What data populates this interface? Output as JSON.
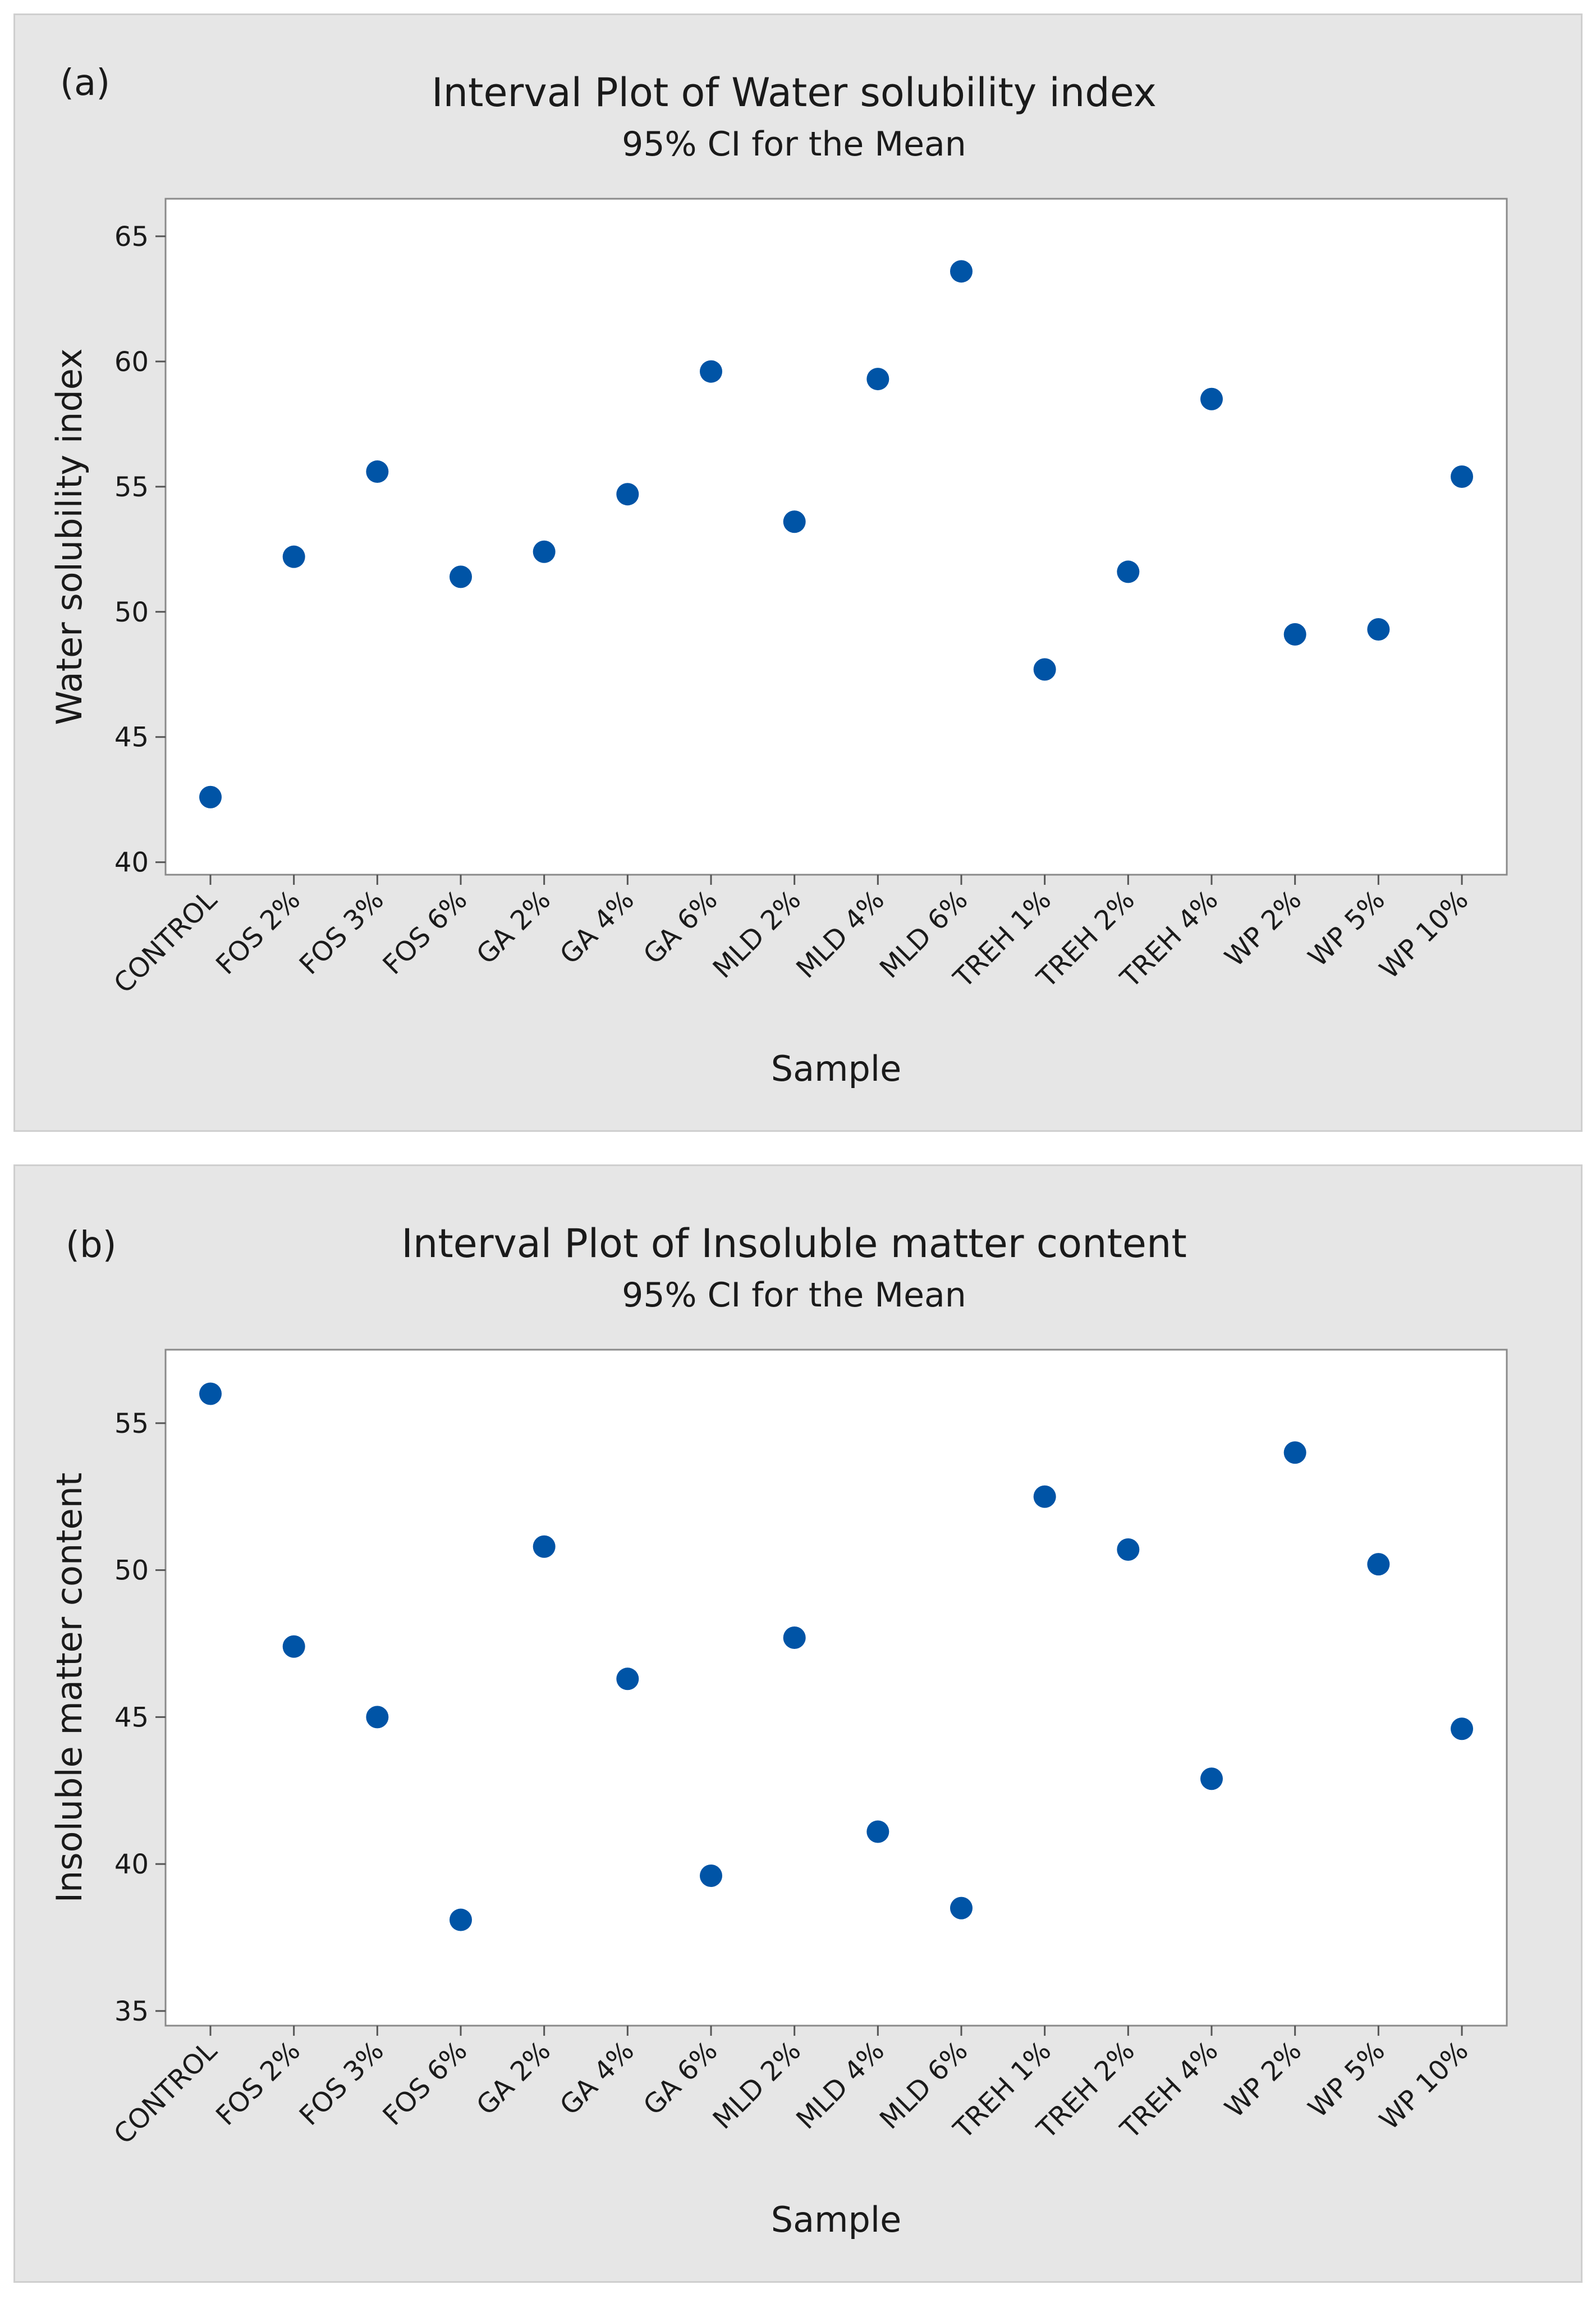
{
  "chart_data": [
    {
      "type": "scatter",
      "panel_label": "(a)",
      "title": "Interval Plot of Water solubility index",
      "subtitle": "95% CI for the Mean",
      "xlabel": "Sample",
      "ylabel": "Water solubility index",
      "ylim": [
        39.5,
        66.5
      ],
      "yticks": [
        40,
        45,
        50,
        55,
        60,
        65
      ],
      "categories": [
        "CONTROL",
        "FOS 2%",
        "FOS 3%",
        "FOS 6%",
        "GA 2%",
        "GA 4%",
        "GA 6%",
        "MLD 2%",
        "MLD 4%",
        "MLD 6%",
        "TREH 1%",
        "TREH 2%",
        "TREH 4%",
        "WP 2%",
        "WP 5%",
        "WP 10%"
      ],
      "series": [
        {
          "name": "Mean",
          "values": [
            42.6,
            52.2,
            55.6,
            51.4,
            52.4,
            54.7,
            59.6,
            53.6,
            59.3,
            63.6,
            47.7,
            51.6,
            58.5,
            49.1,
            49.3,
            55.4
          ]
        }
      ],
      "color": "#0054a6",
      "grid": false,
      "legend": "none"
    },
    {
      "type": "scatter",
      "panel_label": "(b)",
      "title": "Interval Plot of Insoluble matter content",
      "subtitle": "95% CI for the Mean",
      "xlabel": "Sample",
      "ylabel": "Insoluble matter content",
      "ylim": [
        34.5,
        57.5
      ],
      "yticks": [
        35,
        40,
        45,
        50,
        55
      ],
      "categories": [
        "CONTROL",
        "FOS 2%",
        "FOS 3%",
        "FOS 6%",
        "GA 2%",
        "GA 4%",
        "GA 6%",
        "MLD 2%",
        "MLD 4%",
        "MLD 6%",
        "TREH 1%",
        "TREH 2%",
        "TREH 4%",
        "WP 2%",
        "WP 5%",
        "WP 10%"
      ],
      "series": [
        {
          "name": "Mean",
          "values": [
            56.0,
            47.4,
            45.0,
            38.1,
            50.8,
            46.3,
            39.6,
            47.7,
            41.1,
            38.5,
            52.5,
            50.7,
            42.9,
            54.0,
            50.2,
            44.6
          ]
        }
      ],
      "color": "#0054a6",
      "grid": false,
      "legend": "none"
    }
  ]
}
